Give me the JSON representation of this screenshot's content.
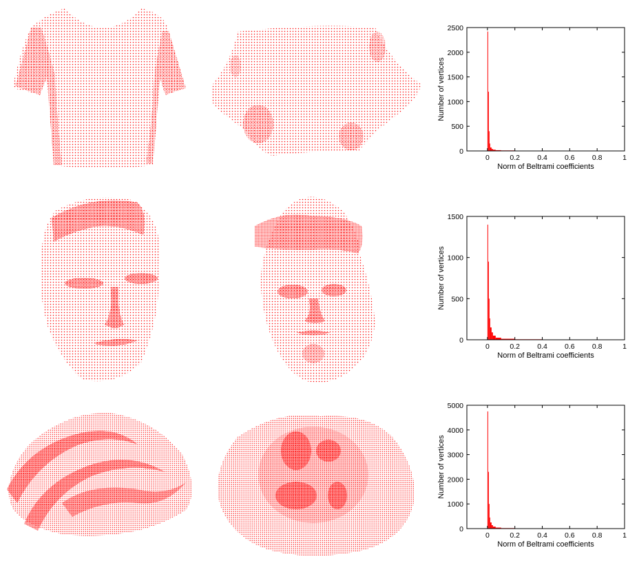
{
  "figure": {
    "point_color": "#ff0000",
    "rows": [
      {
        "input_mesh": "t-shirt point cloud",
        "parameterization": "flattened t-shirt point cloud",
        "chart_data": {
          "type": "bar",
          "xlabel": "Norm of Beltrami coefficients",
          "ylabel": "Number of vertices",
          "xlim": [
            -0.15,
            1.0
          ],
          "ylim": [
            0,
            2500
          ],
          "xticks": [
            "0",
            "0.2",
            "0.4",
            "0.6",
            "0.8",
            "1"
          ],
          "xtick_values": [
            0,
            0.2,
            0.4,
            0.6,
            0.8,
            1
          ],
          "yticks": [
            "0",
            "500",
            "1000",
            "1500",
            "2000",
            "2500"
          ],
          "ytick_values": [
            0,
            500,
            1000,
            1500,
            2000,
            2500
          ],
          "bins": [
            0.0,
            0.005,
            0.01,
            0.015,
            0.02,
            0.03,
            0.04,
            0.06,
            0.1,
            0.2,
            0.4
          ],
          "values": [
            2420,
            1200,
            400,
            150,
            70,
            40,
            25,
            15,
            10,
            6,
            3
          ]
        }
      },
      {
        "input_mesh": "face point cloud",
        "parameterization": "flattened face point cloud",
        "chart_data": {
          "type": "bar",
          "xlabel": "Norm of Beltrami coefficients",
          "ylabel": "Number of vertices",
          "xlim": [
            -0.15,
            1.0
          ],
          "ylim": [
            0,
            1500
          ],
          "xticks": [
            "0",
            "0.2",
            "0.4",
            "0.6",
            "0.8",
            "1"
          ],
          "xtick_values": [
            0,
            0.2,
            0.4,
            0.6,
            0.8,
            1
          ],
          "yticks": [
            "0",
            "500",
            "1000",
            "1500"
          ],
          "ytick_values": [
            0,
            500,
            1000,
            1500
          ],
          "bins": [
            0.0,
            0.005,
            0.01,
            0.015,
            0.02,
            0.03,
            0.04,
            0.06,
            0.1,
            0.2,
            0.4
          ],
          "values": [
            1400,
            950,
            500,
            260,
            150,
            90,
            50,
            25,
            12,
            6,
            3
          ]
        }
      },
      {
        "input_mesh": "folded surface point cloud",
        "parameterization": "flattened folded surface point cloud",
        "chart_data": {
          "type": "bar",
          "xlabel": "Norm of Beltrami coefficients",
          "ylabel": "Number of vertices",
          "xlim": [
            -0.15,
            1.0
          ],
          "ylim": [
            0,
            5000
          ],
          "xticks": [
            "0",
            "0.2",
            "0.4",
            "0.6",
            "0.8",
            "1"
          ],
          "xtick_values": [
            0,
            0.2,
            0.4,
            0.6,
            0.8,
            1
          ],
          "yticks": [
            "0",
            "1000",
            "2000",
            "3000",
            "4000",
            "5000"
          ],
          "ytick_values": [
            0,
            1000,
            2000,
            3000,
            4000,
            5000
          ],
          "bins": [
            0.0,
            0.005,
            0.01,
            0.015,
            0.02,
            0.03,
            0.04,
            0.06,
            0.1,
            0.2,
            0.4
          ],
          "values": [
            4750,
            2300,
            1000,
            450,
            250,
            140,
            80,
            40,
            20,
            10,
            4
          ]
        }
      }
    ]
  }
}
